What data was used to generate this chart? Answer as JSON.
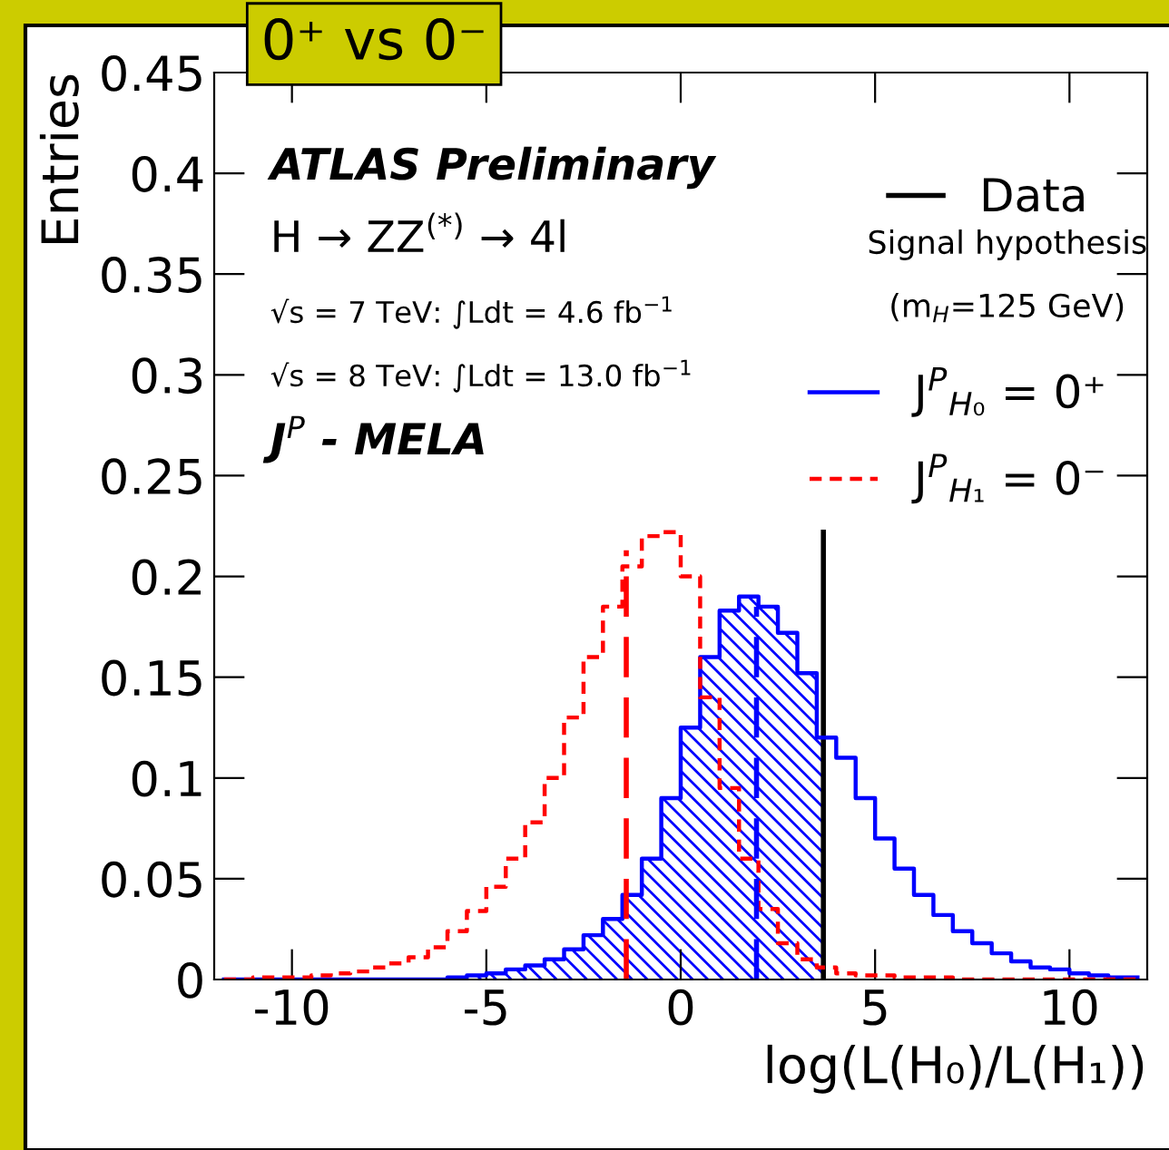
{
  "chart_data": {
    "type": "step",
    "title": "0⁺ vs 0⁻",
    "xlabel": "log(L(H₀)/L(H₁))",
    "ylabel": "Entries",
    "x": [
      -11.75,
      -11.25,
      -10.75,
      -10.25,
      -9.75,
      -9.25,
      -8.75,
      -8.25,
      -7.75,
      -7.25,
      -6.75,
      -6.25,
      -5.75,
      -5.25,
      -4.75,
      -4.25,
      -3.75,
      -3.25,
      -2.75,
      -2.25,
      -1.75,
      -1.25,
      -0.75,
      -0.25,
      0.25,
      0.75,
      1.25,
      1.75,
      2.25,
      2.75,
      3.25,
      3.75,
      4.25,
      4.75,
      5.25,
      5.75,
      6.25,
      6.75,
      7.25,
      7.75,
      8.25,
      8.75,
      9.25,
      9.75,
      10.25,
      10.75,
      11.25,
      11.75
    ],
    "series": [
      {
        "name": "Data",
        "type": "line",
        "color": "#000000",
        "x": [
          3.67,
          3.67
        ],
        "values": [
          0,
          0.222
        ],
        "line_style": "solid"
      },
      {
        "name": "J$^{P}$$_{H₀}$ = 0⁺",
        "color": "#0000ff",
        "line_style": "solid",
        "values": [
          0,
          0,
          0,
          0,
          0,
          0,
          0,
          0,
          0,
          0,
          0,
          0,
          0.001,
          0.002,
          0.003,
          0.005,
          0.007,
          0.01,
          0.015,
          0.022,
          0.03,
          0.042,
          0.06,
          0.09,
          0.125,
          0.16,
          0.183,
          0.19,
          0.185,
          0.172,
          0.152,
          0.12,
          0.11,
          0.09,
          0.07,
          0.055,
          0.042,
          0.032,
          0.024,
          0.018,
          0.013,
          0.009,
          0.006,
          0.005,
          0.003,
          0.002,
          0.001,
          0.001
        ]
      },
      {
        "name": "J$^{P}$$_{H₁}$ = 0⁻",
        "color": "#ff0000",
        "line_style": "dotted",
        "values": [
          0,
          0,
          0.001,
          0.001,
          0.001,
          0.002,
          0.003,
          0.004,
          0.006,
          0.008,
          0.011,
          0.016,
          0.024,
          0.034,
          0.046,
          0.06,
          0.078,
          0.1,
          0.13,
          0.16,
          0.185,
          0.205,
          0.22,
          0.222,
          0.2,
          0.14,
          0.095,
          0.06,
          0.035,
          0.018,
          0.01,
          0.006,
          0.003,
          0.002,
          0.002,
          0.001,
          0.001,
          0.001,
          0,
          0,
          0,
          0,
          0,
          0,
          0,
          0,
          0,
          0
        ]
      },
      {
        "type": "line",
        "color": "#ff0000",
        "x": [
          -1.4,
          -1.4
        ],
        "values": [
          0,
          0.213
        ],
        "line_style": "dashed"
      },
      {
        "type": "line",
        "color": "#0000ff",
        "x": [
          1.95,
          1.95
        ],
        "values": [
          0,
          0.185
        ],
        "line_style": "dashed"
      }
    ],
    "xlim": [
      -12,
      12
    ],
    "xticks": [
      -10,
      -5,
      0,
      5,
      10
    ],
    "ylim": [
      0,
      0.45
    ],
    "yticks": [
      0,
      0.05,
      0.1,
      0.15,
      0.2,
      0.25,
      0.3,
      0.35,
      0.4,
      0.45
    ],
    "legend": "top right",
    "grid": false,
    "annotations": [
      "ATLAS Preliminary",
      "H → ZZ$^{(*)}$ → 4l",
      "√s = 7 TeV: ∫Ldt = 4.6 fb$^{−1}$",
      "√s = 8 TeV: ∫Ldt = 13.0 fb$^{−1}$",
      "J$^{P}$ - MELA",
      "Signal hypothesis",
      "(m$_{H}$=125 GeV)"
    ]
  }
}
